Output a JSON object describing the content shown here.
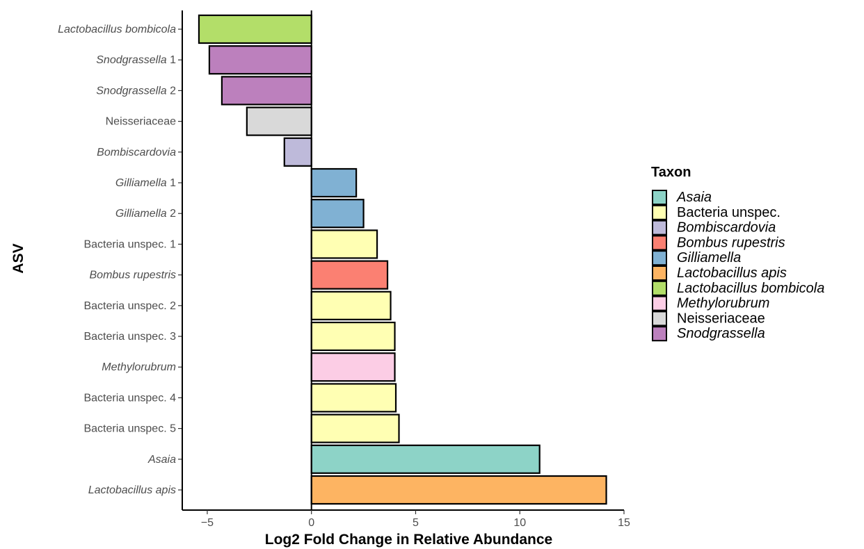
{
  "chart_data": {
    "type": "bar",
    "orientation": "horizontal",
    "xlabel": "Log2 Fold Change in Relative Abundance",
    "ylabel": "ASV",
    "xlim": [
      -6.2,
      15
    ],
    "xticks": [
      -5,
      0,
      5,
      10,
      15
    ],
    "xtick_labels": [
      "−5",
      "0",
      "5",
      "10",
      "15"
    ],
    "grid": false,
    "legend_position": "right",
    "legend_title": "Taxon",
    "legend": [
      {
        "label": "Asaia",
        "color": "#8dd3c7",
        "italic": true
      },
      {
        "label": "Bacteria unspec.",
        "color": "#ffffb3",
        "italic": false
      },
      {
        "label": "Bombiscardovia",
        "color": "#bebada",
        "italic": true
      },
      {
        "label": "Bombus rupestris",
        "color": "#fb8072",
        "italic": true
      },
      {
        "label": "Gilliamella",
        "color": "#80b1d3",
        "italic": true
      },
      {
        "label": "Lactobacillus apis",
        "color": "#fdb462",
        "italic": true
      },
      {
        "label": "Lactobacillus bombicola",
        "color": "#b3de69",
        "italic": true
      },
      {
        "label": "Methylorubrum",
        "color": "#fccde5",
        "italic": true
      },
      {
        "label": "Neisseriaceae",
        "color": "#d9d9d9",
        "italic": false
      },
      {
        "label": "Snodgrassella",
        "color": "#bc80bd",
        "italic": true
      }
    ],
    "bars": [
      {
        "label": "Lactobacillus bombicola",
        "genus": "Lactobacillus bombicola",
        "suffix": "",
        "italic": true,
        "taxon": "Lactobacillus bombicola",
        "value": -5.4
      },
      {
        "label": "Snodgrassella 1",
        "genus": "Snodgrassella",
        "suffix": " 1",
        "italic": true,
        "taxon": "Snodgrassella",
        "value": -4.9
      },
      {
        "label": "Snodgrassella 2",
        "genus": "Snodgrassella",
        "suffix": " 2",
        "italic": true,
        "taxon": "Snodgrassella",
        "value": -4.3
      },
      {
        "label": "Neisseriaceae",
        "genus": "Neisseriaceae",
        "suffix": "",
        "italic": false,
        "taxon": "Neisseriaceae",
        "value": -3.1
      },
      {
        "label": "Bombiscardovia",
        "genus": "Bombiscardovia",
        "suffix": "",
        "italic": true,
        "taxon": "Bombiscardovia",
        "value": -1.3
      },
      {
        "label": "Gilliamella 1",
        "genus": "Gilliamella",
        "suffix": " 1",
        "italic": true,
        "taxon": "Gilliamella",
        "value": 2.15
      },
      {
        "label": "Gilliamella 2",
        "genus": "Gilliamella",
        "suffix": " 2",
        "italic": true,
        "taxon": "Gilliamella",
        "value": 2.5
      },
      {
        "label": "Bacteria unspec. 1",
        "genus": "Bacteria unspec. 1",
        "suffix": "",
        "italic": false,
        "taxon": "Bacteria unspec.",
        "value": 3.15
      },
      {
        "label": "Bombus rupestris",
        "genus": "Bombus rupestris",
        "suffix": "",
        "italic": true,
        "taxon": "Bombus rupestris",
        "value": 3.65
      },
      {
        "label": "Bacteria unspec. 2",
        "genus": "Bacteria unspec. 2",
        "suffix": "",
        "italic": false,
        "taxon": "Bacteria unspec.",
        "value": 3.8
      },
      {
        "label": "Bacteria unspec. 3",
        "genus": "Bacteria unspec. 3",
        "suffix": "",
        "italic": false,
        "taxon": "Bacteria unspec.",
        "value": 4.0
      },
      {
        "label": "Methylorubrum",
        "genus": "Methylorubrum",
        "suffix": "",
        "italic": true,
        "taxon": "Methylorubrum",
        "value": 4.0
      },
      {
        "label": "Bacteria unspec. 4",
        "genus": "Bacteria unspec. 4",
        "suffix": "",
        "italic": false,
        "taxon": "Bacteria unspec.",
        "value": 4.05
      },
      {
        "label": "Bacteria unspec. 5",
        "genus": "Bacteria unspec. 5",
        "suffix": "",
        "italic": false,
        "taxon": "Bacteria unspec.",
        "value": 4.2
      },
      {
        "label": "Asaia",
        "genus": "Asaia",
        "suffix": "",
        "italic": true,
        "taxon": "Asaia",
        "value": 10.95
      },
      {
        "label": "Lactobacillus apis",
        "genus": "Lactobacillus apis",
        "suffix": "",
        "italic": true,
        "taxon": "Lactobacillus apis",
        "value": 14.15
      }
    ]
  }
}
